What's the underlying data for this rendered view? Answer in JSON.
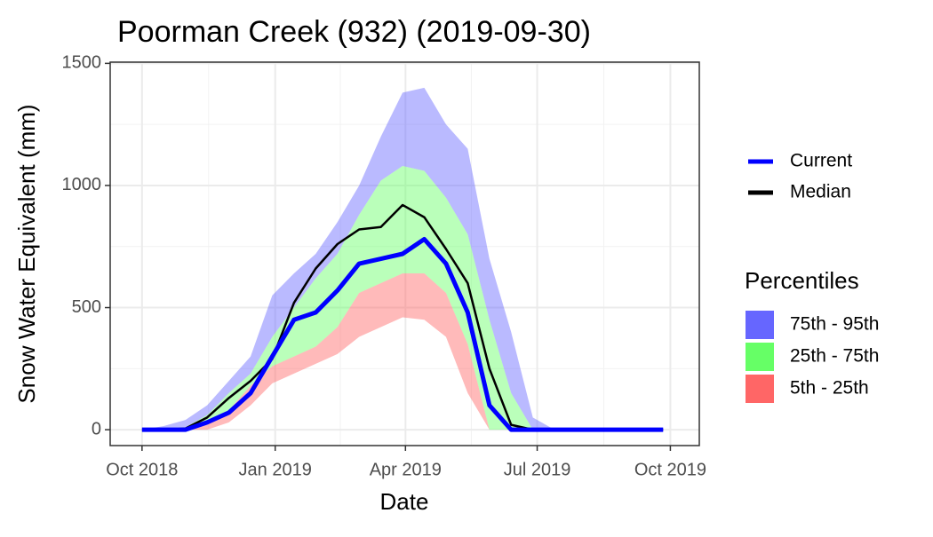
{
  "chart_data": {
    "type": "line",
    "title": "Poorman Creek (932) (2019-09-30)",
    "x_label": "Date",
    "y_label": "Snow Water Equivalent (mm)",
    "x": [
      0,
      15,
      30,
      45,
      60,
      75,
      90,
      105,
      120,
      135,
      150,
      165,
      180,
      195,
      210,
      225,
      240,
      255,
      270,
      285,
      300,
      315,
      330,
      345,
      360
    ],
    "xlim": [
      -22,
      385
    ],
    "ylim": [
      -65,
      1505
    ],
    "xticks": [
      {
        "value": 0,
        "label": "Oct 2018"
      },
      {
        "value": 92,
        "label": "Jan 2019"
      },
      {
        "value": 182,
        "label": "Apr 2019"
      },
      {
        "value": 273,
        "label": "Jul 2019"
      },
      {
        "value": 365,
        "label": "Oct 2019"
      }
    ],
    "yticks": [
      0,
      500,
      1000,
      1500
    ],
    "grid": true,
    "bands": {
      "title": "Percentiles",
      "series": [
        {
          "name": "75th - 95th",
          "color": "#6666ff",
          "lower": [
            0,
            5,
            10,
            60,
            150,
            230,
            380,
            500,
            620,
            720,
            880,
            1020,
            1080,
            1060,
            950,
            800,
            450,
            150,
            0,
            0,
            0,
            0,
            0,
            0,
            0
          ],
          "upper": [
            0,
            15,
            40,
            100,
            200,
            300,
            550,
            640,
            720,
            850,
            1000,
            1200,
            1380,
            1400,
            1250,
            1150,
            700,
            400,
            50,
            0,
            0,
            0,
            0,
            0,
            0
          ]
        },
        {
          "name": "25th - 75th",
          "color": "#66ff66",
          "lower": [
            0,
            0,
            0,
            20,
            80,
            180,
            260,
            300,
            340,
            420,
            560,
            600,
            640,
            640,
            560,
            350,
            0,
            0,
            0,
            0,
            0,
            0,
            0,
            0,
            0
          ],
          "upper": [
            0,
            5,
            10,
            60,
            150,
            230,
            380,
            500,
            620,
            720,
            880,
            1020,
            1080,
            1060,
            950,
            800,
            450,
            150,
            0,
            0,
            0,
            0,
            0,
            0,
            0
          ]
        },
        {
          "name": "5th - 25th",
          "color": "#ff6666",
          "lower": [
            0,
            0,
            0,
            0,
            30,
            100,
            190,
            230,
            270,
            310,
            380,
            420,
            460,
            450,
            380,
            150,
            0,
            0,
            0,
            0,
            0,
            0,
            0,
            0,
            0
          ],
          "upper": [
            0,
            0,
            0,
            20,
            80,
            180,
            260,
            300,
            340,
            420,
            560,
            600,
            640,
            640,
            560,
            350,
            0,
            0,
            0,
            0,
            0,
            0,
            0,
            0,
            0
          ]
        }
      ]
    },
    "series": [
      {
        "name": "Current",
        "color": "#0000ff",
        "width": 5,
        "values": [
          0,
          0,
          0,
          30,
          70,
          150,
          300,
          450,
          480,
          570,
          680,
          700,
          720,
          780,
          680,
          480,
          100,
          0,
          0,
          0,
          0,
          0,
          0,
          0,
          0
        ]
      },
      {
        "name": "Median",
        "color": "#000000",
        "width": 2.5,
        "values": [
          0,
          0,
          5,
          50,
          130,
          200,
          290,
          520,
          660,
          760,
          820,
          830,
          920,
          870,
          740,
          600,
          250,
          20,
          0,
          0,
          0,
          0,
          0,
          0,
          0
        ]
      }
    ]
  }
}
